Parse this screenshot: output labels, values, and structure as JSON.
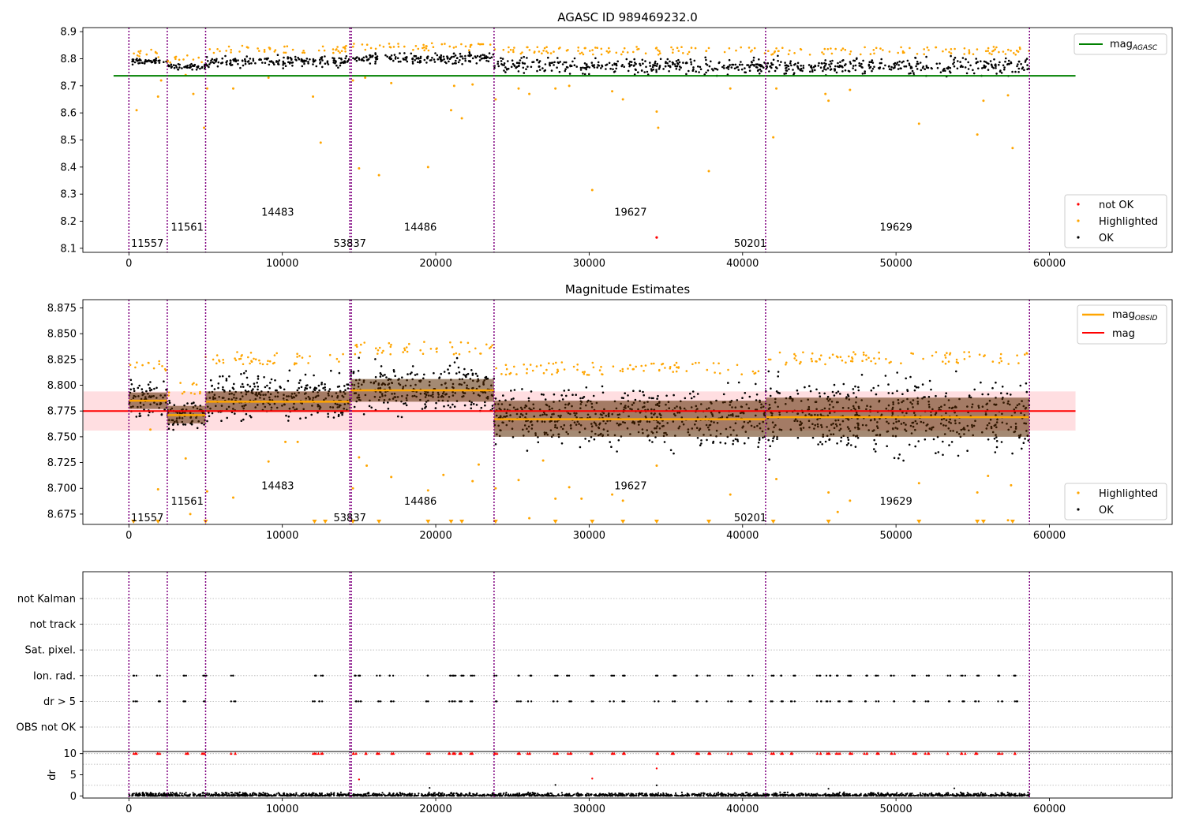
{
  "figure": {
    "colors": {
      "ok": "#000000",
      "highlighted": "#ffa500",
      "not_ok": "#ff0000",
      "obs_line": "#800080",
      "mag_agasc": "#008000",
      "mag": "#ff0000",
      "mag_obsid": "#ffa500"
    }
  },
  "chart_data": [
    {
      "type": "scatter",
      "title": "AGASC ID 989469232.0",
      "xlim": [
        -3000,
        68000
      ],
      "ylim": [
        8.085,
        8.915
      ],
      "xticks": [
        0,
        10000,
        20000,
        30000,
        40000,
        50000,
        60000
      ],
      "yticks": [
        8.1,
        8.2,
        8.3,
        8.4,
        8.5,
        8.6,
        8.7,
        8.8,
        8.9
      ],
      "ytick_labels": [
        "8.1",
        "8.2",
        "8.3",
        "8.4",
        "8.5",
        "8.6",
        "8.7",
        "8.8",
        "8.9"
      ],
      "obs_boundaries": [
        0,
        2500,
        5000,
        14400,
        14500,
        23800,
        41500,
        58700
      ],
      "obsids": [
        {
          "label": "11557",
          "x": 1200,
          "y": 8.12
        },
        {
          "label": "11561",
          "x": 3800,
          "y": 8.18
        },
        {
          "label": "14483",
          "x": 9700,
          "y": 8.235
        },
        {
          "label": "53837",
          "x": 14400,
          "y": 8.12
        },
        {
          "label": "14486",
          "x": 19000,
          "y": 8.18
        },
        {
          "label": "19627",
          "x": 32700,
          "y": 8.235
        },
        {
          "label": "50201",
          "x": 40500,
          "y": 8.12
        },
        {
          "label": "19629",
          "x": 50000,
          "y": 8.18
        }
      ],
      "mag_agasc": {
        "value": 8.737,
        "x": [
          -1000,
          61700
        ]
      },
      "segments": [
        {
          "x": [
            0,
            2500
          ],
          "y": [
            8.775,
            8.805
          ]
        },
        {
          "x": [
            2500,
            5000
          ],
          "y": [
            8.755,
            8.785
          ]
        },
        {
          "x": [
            5000,
            14450
          ],
          "y": [
            8.76,
            8.82
          ]
        },
        {
          "x": [
            14450,
            23800
          ],
          "y": [
            8.775,
            8.83
          ]
        },
        {
          "x": [
            23800,
            41500
          ],
          "y": [
            8.73,
            8.815
          ]
        },
        {
          "x": [
            41500,
            58700
          ],
          "y": [
            8.73,
            8.815
          ]
        }
      ],
      "highlighted_points": [
        [
          500,
          8.61
        ],
        [
          1900,
          8.66
        ],
        [
          2100,
          8.72
        ],
        [
          3700,
          8.74
        ],
        [
          4200,
          8.67
        ],
        [
          4900,
          8.545
        ],
        [
          5100,
          8.69
        ],
        [
          6800,
          8.69
        ],
        [
          9100,
          8.73
        ],
        [
          12000,
          8.66
        ],
        [
          12500,
          8.49
        ],
        [
          14600,
          8.72
        ],
        [
          15000,
          8.395
        ],
        [
          15400,
          8.73
        ],
        [
          16300,
          8.37
        ],
        [
          17100,
          8.71
        ],
        [
          19500,
          8.4
        ],
        [
          21000,
          8.61
        ],
        [
          21200,
          8.7
        ],
        [
          21700,
          8.58
        ],
        [
          22400,
          8.705
        ],
        [
          23900,
          8.65
        ],
        [
          25400,
          8.69
        ],
        [
          26100,
          8.67
        ],
        [
          27800,
          8.69
        ],
        [
          28700,
          8.7
        ],
        [
          30200,
          8.315
        ],
        [
          31500,
          8.68
        ],
        [
          32200,
          8.65
        ],
        [
          34400,
          8.605
        ],
        [
          34500,
          8.545
        ],
        [
          37800,
          8.385
        ],
        [
          39200,
          8.69
        ],
        [
          42000,
          8.51
        ],
        [
          42200,
          8.69
        ],
        [
          45400,
          8.67
        ],
        [
          45600,
          8.645
        ],
        [
          47000,
          8.685
        ],
        [
          51500,
          8.56
        ],
        [
          55300,
          8.52
        ],
        [
          55700,
          8.645
        ],
        [
          57300,
          8.665
        ],
        [
          57600,
          8.47
        ]
      ],
      "not_ok_points": [
        [
          34400,
          8.14
        ]
      ],
      "legend_lines": [
        {
          "label": "mag",
          "sub": "AGASC",
          "color": "#008000"
        }
      ],
      "legend_points": [
        {
          "label": "not OK",
          "color": "#ff0000"
        },
        {
          "label": "Highlighted",
          "color": "#ffa500"
        },
        {
          "label": "OK",
          "color": "#000000"
        }
      ]
    },
    {
      "type": "scatter",
      "title": "Magnitude Estimates",
      "xlim": [
        -3000,
        68000
      ],
      "ylim": [
        8.665,
        8.883
      ],
      "xticks": [
        0,
        10000,
        20000,
        30000,
        40000,
        50000,
        60000
      ],
      "yticks": [
        8.675,
        8.7,
        8.725,
        8.75,
        8.775,
        8.8,
        8.825,
        8.85,
        8.875
      ],
      "ytick_labels": [
        "8.675",
        "8.700",
        "8.725",
        "8.750",
        "8.775",
        "8.800",
        "8.825",
        "8.850",
        "8.875"
      ],
      "mag": {
        "value": 8.775,
        "band": [
          8.756,
          8.794
        ],
        "x": [
          -3000,
          61700
        ]
      },
      "obsids": [
        {
          "label": "11557",
          "x": 1200,
          "y": 8.672
        },
        {
          "label": "11561",
          "x": 3800,
          "y": 8.688
        },
        {
          "label": "14483",
          "x": 9700,
          "y": 8.703
        },
        {
          "label": "53837",
          "x": 14400,
          "y": 8.672
        },
        {
          "label": "14486",
          "x": 19000,
          "y": 8.688
        },
        {
          "label": "19627",
          "x": 32700,
          "y": 8.703
        },
        {
          "label": "50201",
          "x": 40500,
          "y": 8.672
        },
        {
          "label": "19629",
          "x": 50000,
          "y": 8.688
        }
      ],
      "segments": [
        {
          "x": [
            0,
            2500
          ],
          "mag": 8.785,
          "lo": 8.777,
          "hi": 8.793,
          "y": [
            8.758,
            8.813
          ]
        },
        {
          "x": [
            2500,
            5000
          ],
          "mag": 8.771,
          "lo": 8.763,
          "hi": 8.78,
          "y": [
            8.752,
            8.79
          ]
        },
        {
          "x": [
            5000,
            14450
          ],
          "mag": 8.784,
          "lo": 8.774,
          "hi": 8.794,
          "y": [
            8.757,
            8.82
          ]
        },
        {
          "x": [
            14450,
            23800
          ],
          "mag": 8.795,
          "lo": 8.784,
          "hi": 8.806,
          "y": [
            8.763,
            8.83
          ]
        },
        {
          "x": [
            23800,
            41500
          ],
          "mag": 8.767,
          "lo": 8.75,
          "hi": 8.785,
          "y": [
            8.728,
            8.81
          ]
        },
        {
          "x": [
            41500,
            58700
          ],
          "mag": 8.769,
          "lo": 8.75,
          "hi": 8.788,
          "y": [
            8.72,
            8.82
          ]
        }
      ],
      "highlighted_points": [
        [
          1400,
          8.757
        ],
        [
          1900,
          8.699
        ],
        [
          3700,
          8.729
        ],
        [
          4000,
          8.675
        ],
        [
          5100,
          8.697
        ],
        [
          6800,
          8.691
        ],
        [
          9100,
          8.726
        ],
        [
          10200,
          8.745
        ],
        [
          11000,
          8.745
        ],
        [
          14600,
          8.7
        ],
        [
          15000,
          8.73
        ],
        [
          15500,
          8.722
        ],
        [
          17100,
          8.711
        ],
        [
          19500,
          8.698
        ],
        [
          20500,
          8.713
        ],
        [
          22400,
          8.707
        ],
        [
          22800,
          8.723
        ],
        [
          23900,
          8.7
        ],
        [
          25400,
          8.708
        ],
        [
          26100,
          8.671
        ],
        [
          27000,
          8.727
        ],
        [
          27800,
          8.69
        ],
        [
          28700,
          8.701
        ],
        [
          29500,
          8.69
        ],
        [
          31500,
          8.694
        ],
        [
          32200,
          8.688
        ],
        [
          34400,
          8.722
        ],
        [
          39200,
          8.694
        ],
        [
          42200,
          8.709
        ],
        [
          45600,
          8.696
        ],
        [
          46200,
          8.677
        ],
        [
          47000,
          8.688
        ],
        [
          51500,
          8.705
        ],
        [
          55300,
          8.696
        ],
        [
          56000,
          8.712
        ],
        [
          57300,
          8.669
        ],
        [
          57500,
          8.703
        ]
      ],
      "clipped_low_x": [
        300,
        1900,
        5000,
        12100,
        12800,
        14600,
        16300,
        19500,
        21000,
        21700,
        23900,
        27800,
        30200,
        32200,
        34400,
        37800,
        42000,
        45600,
        51500,
        55300,
        55700,
        57600
      ],
      "legend_lines": [
        {
          "label": "mag",
          "sub": "OBSID",
          "color": "#ffa500"
        },
        {
          "label": "mag",
          "sub": "",
          "color": "#ff0000"
        }
      ],
      "legend_points": [
        {
          "label": "Highlighted",
          "color": "#ffa500"
        },
        {
          "label": "OK",
          "color": "#000000"
        }
      ]
    },
    {
      "type": "scatter",
      "title": "",
      "xlim": [
        -3000,
        68000
      ],
      "categories": [
        "OBS not OK",
        "dr > 5",
        "Ion. rad.",
        "Sat. pixel.",
        "not track",
        "not Kalman"
      ],
      "flag_points": {
        "dr > 5": [
          400,
          1900,
          3700,
          4900,
          6800,
          12100,
          12500,
          14700,
          15000,
          16300,
          17100,
          19500,
          21000,
          21200,
          21700,
          22400,
          23900,
          25400,
          26100,
          27800,
          28700,
          30200,
          31500,
          32200,
          34400,
          35500,
          37000,
          37800,
          39200,
          40500,
          42000,
          42500,
          43300,
          45000,
          45600,
          46200,
          47000,
          48000,
          48800,
          49800,
          51200,
          52000,
          53500,
          54400,
          55300,
          56800,
          57800
        ],
        "Ion. rad.": [
          400,
          1900,
          3700,
          4900,
          6800,
          12100,
          12500,
          14700,
          15000,
          16300,
          17100,
          19500,
          21000,
          21200,
          21700,
          22400,
          23900,
          25400,
          26100,
          27800,
          28700,
          30200,
          31500,
          32200,
          34400,
          35500,
          37000,
          37800,
          39200,
          40500,
          42000,
          42500,
          43300,
          45000,
          45600,
          46200,
          47000,
          48000,
          48800,
          49800,
          51200,
          52000,
          53500,
          54400,
          55300,
          56800,
          57800
        ]
      }
    },
    {
      "type": "scatter",
      "title": "",
      "ylabel": "dr",
      "xlim": [
        -3000,
        68000
      ],
      "ylim": [
        -0.5,
        10.5
      ],
      "xticks": [
        0,
        10000,
        20000,
        30000,
        40000,
        50000,
        60000
      ],
      "yticks": [
        0,
        5,
        10
      ],
      "ytick_labels": [
        "0",
        "5",
        "10"
      ],
      "dr_outliers_red": [
        [
          15000,
          3.9
        ],
        [
          30200,
          4.1
        ],
        [
          34400,
          6.5
        ]
      ],
      "dr_outliers_black": [
        [
          27800,
          2.6
        ],
        [
          34400,
          2.5
        ],
        [
          19600,
          1.9
        ],
        [
          45600,
          1.7
        ],
        [
          53800,
          1.8
        ]
      ],
      "dr_clipped_x": [
        400,
        1900,
        3700,
        4900,
        6800,
        12100,
        12500,
        14700,
        15500,
        16300,
        17100,
        19500,
        21000,
        21200,
        21700,
        22400,
        23900,
        25400,
        26100,
        27800,
        28700,
        30200,
        31500,
        32200,
        34400,
        35500,
        37000,
        37800,
        39200,
        40500,
        42000,
        42500,
        43300,
        45000,
        45600,
        46200,
        47000,
        48000,
        48800,
        49800,
        51200,
        52000,
        53500,
        54400,
        55300,
        56800,
        57800
      ],
      "dr_range": [
        0.0,
        0.9
      ]
    }
  ]
}
